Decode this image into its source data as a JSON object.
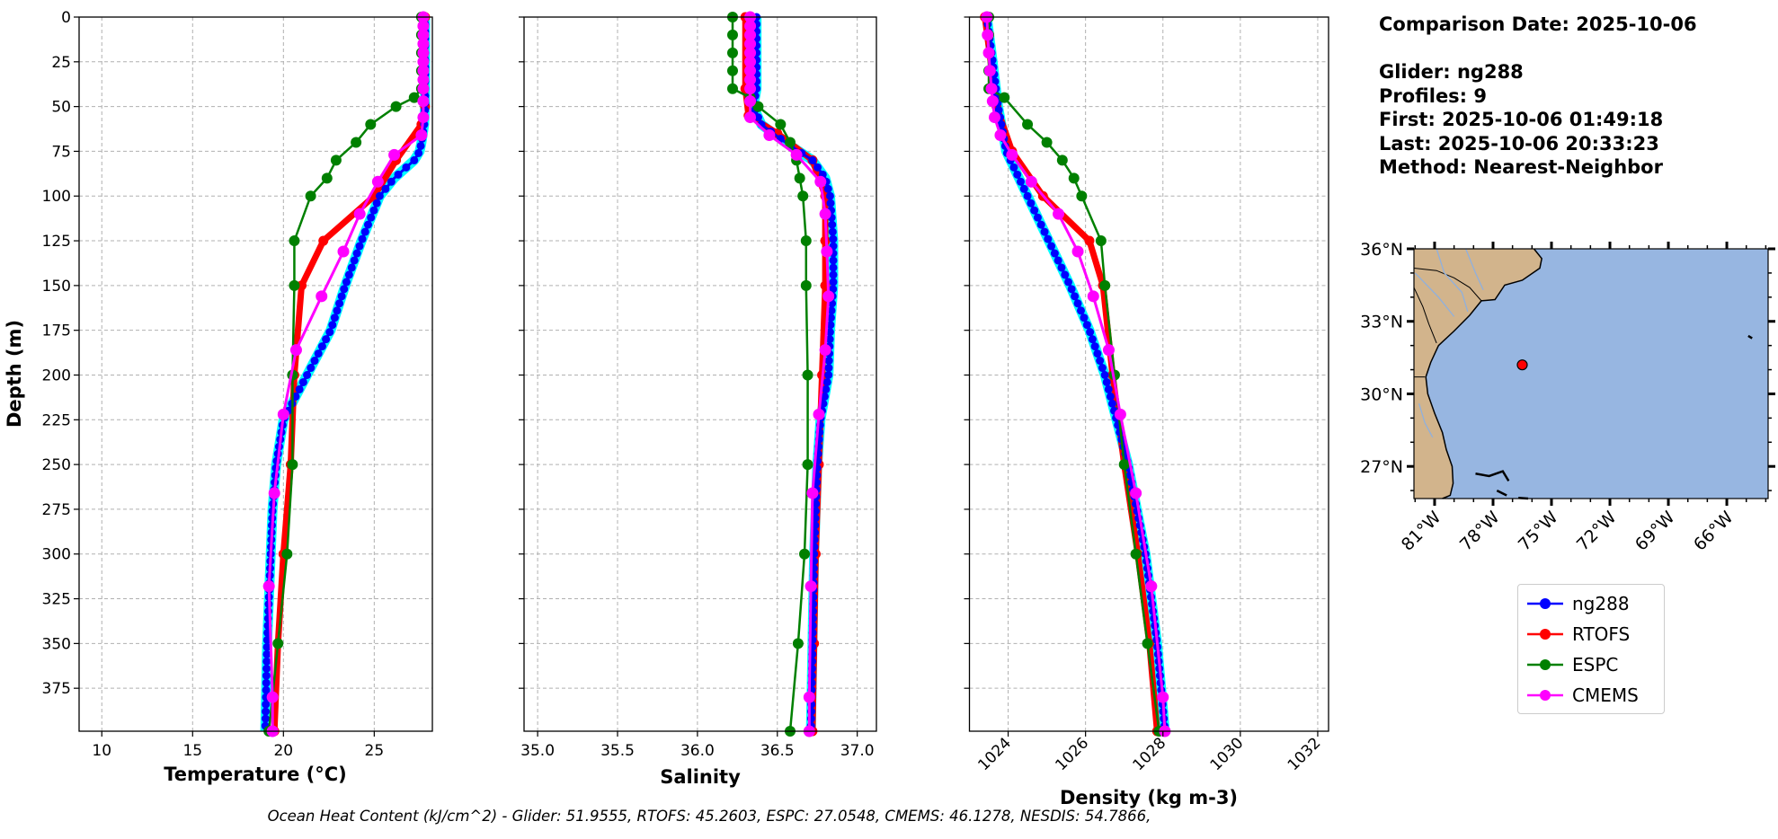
{
  "chart_data": [
    {
      "type": "line",
      "xlabel": "Temperature (°C)",
      "ylabel": "Depth (m)",
      "xlim": [
        8.75,
        28.2
      ],
      "ylim": [
        399,
        0
      ],
      "xticks": [
        10,
        15,
        20,
        25
      ],
      "yticks": [
        0,
        25,
        50,
        75,
        100,
        125,
        150,
        175,
        200,
        225,
        250,
        275,
        300,
        325,
        350,
        375
      ],
      "grid": true,
      "series": [
        {
          "name": "ng288",
          "depth": [
            0,
            20,
            40,
            50,
            60,
            70,
            75,
            80,
            90,
            100,
            110,
            125,
            150,
            175,
            200,
            225,
            250,
            275,
            300,
            350,
            399
          ],
          "values": [
            27.8,
            27.8,
            27.8,
            27.8,
            27.75,
            27.6,
            27.5,
            27.2,
            26.1,
            25.3,
            24.9,
            24.3,
            23.4,
            22.6,
            21.3,
            20.0,
            19.6,
            19.4,
            19.3,
            19.1,
            19.0
          ]
        },
        {
          "name": "RTOFS",
          "depth": [
            0,
            50,
            60,
            80,
            100,
            125,
            150,
            200,
            250,
            300,
            350,
            399
          ],
          "values": [
            27.8,
            27.8,
            27.6,
            26.2,
            25.0,
            22.2,
            21.0,
            20.6,
            20.4,
            20.0,
            19.7,
            19.5
          ]
        },
        {
          "name": "ESPC",
          "depth": [
            0,
            10,
            20,
            30,
            40,
            45,
            50,
            60,
            70,
            80,
            90,
            100,
            125,
            150,
            200,
            250,
            300,
            350,
            399
          ],
          "values": [
            27.6,
            27.6,
            27.6,
            27.6,
            27.6,
            27.2,
            26.2,
            24.8,
            24.0,
            22.9,
            22.4,
            21.5,
            20.6,
            20.6,
            20.5,
            20.5,
            20.2,
            19.7,
            19.2
          ]
        },
        {
          "name": "CMEMS",
          "depth": [
            0,
            5,
            10,
            15,
            20,
            25,
            30,
            35,
            40,
            47,
            56,
            66,
            77,
            92,
            110,
            131,
            156,
            186,
            222,
            266,
            318,
            380,
            399
          ],
          "values": [
            27.7,
            27.7,
            27.7,
            27.7,
            27.7,
            27.7,
            27.7,
            27.7,
            27.7,
            27.7,
            27.7,
            27.6,
            26.1,
            25.2,
            24.2,
            23.3,
            22.1,
            20.7,
            20.0,
            19.5,
            19.2,
            19.4,
            19.4
          ]
        }
      ]
    },
    {
      "type": "line",
      "xlabel": "Salinity",
      "xlim": [
        34.915,
        37.12
      ],
      "ylim": [
        399,
        0
      ],
      "xticks": [
        35.0,
        35.5,
        36.0,
        36.5,
        37.0
      ],
      "grid": true,
      "series": [
        {
          "name": "ng288",
          "depth": [
            0,
            20,
            40,
            50,
            60,
            70,
            80,
            90,
            100,
            125,
            150,
            175,
            200,
            225,
            250,
            300,
            350,
            399
          ],
          "values": [
            36.37,
            36.37,
            36.37,
            36.35,
            36.4,
            36.55,
            36.72,
            36.8,
            36.83,
            36.85,
            36.85,
            36.83,
            36.82,
            36.77,
            36.75,
            36.73,
            36.72,
            36.71
          ]
        },
        {
          "name": "RTOFS",
          "depth": [
            0,
            40,
            55,
            65,
            80,
            100,
            125,
            150,
            200,
            250,
            300,
            350,
            399
          ],
          "values": [
            36.3,
            36.3,
            36.32,
            36.5,
            36.72,
            36.8,
            36.8,
            36.8,
            36.78,
            36.76,
            36.74,
            36.73,
            36.72
          ]
        },
        {
          "name": "ESPC",
          "depth": [
            0,
            10,
            20,
            30,
            40,
            45,
            50,
            60,
            70,
            80,
            90,
            100,
            125,
            150,
            200,
            250,
            300,
            350,
            399
          ],
          "values": [
            36.22,
            36.22,
            36.22,
            36.22,
            36.22,
            36.33,
            36.38,
            36.52,
            36.58,
            36.62,
            36.64,
            36.66,
            36.68,
            36.68,
            36.69,
            36.69,
            36.67,
            36.63,
            36.58
          ]
        },
        {
          "name": "CMEMS",
          "depth": [
            0,
            5,
            10,
            15,
            20,
            25,
            30,
            35,
            40,
            47,
            56,
            66,
            77,
            92,
            110,
            131,
            156,
            186,
            222,
            266,
            318,
            380,
            399
          ],
          "values": [
            36.33,
            36.33,
            36.33,
            36.33,
            36.33,
            36.33,
            36.33,
            36.33,
            36.33,
            36.33,
            36.33,
            36.45,
            36.62,
            36.77,
            36.8,
            36.81,
            36.82,
            36.8,
            36.76,
            36.72,
            36.71,
            36.7,
            36.7
          ]
        }
      ]
    },
    {
      "type": "line",
      "xlabel": "Density (kg m-3)",
      "xlim": [
        1023.0,
        1032.28
      ],
      "ylim": [
        399,
        0
      ],
      "xticks": [
        1024,
        1026,
        1028,
        1030,
        1032
      ],
      "grid": true,
      "series": [
        {
          "name": "ng288",
          "depth": [
            0,
            25,
            50,
            75,
            100,
            125,
            150,
            175,
            200,
            225,
            250,
            300,
            350,
            399
          ],
          "values": [
            1023.45,
            1023.6,
            1023.74,
            1023.95,
            1024.5,
            1025.05,
            1025.6,
            1026.1,
            1026.5,
            1026.8,
            1027.1,
            1027.55,
            1027.85,
            1028.05
          ]
        },
        {
          "name": "RTOFS",
          "depth": [
            0,
            50,
            75,
            100,
            125,
            150,
            200,
            250,
            300,
            350,
            399
          ],
          "values": [
            1023.4,
            1023.7,
            1024.1,
            1024.9,
            1026.1,
            1026.45,
            1026.7,
            1027.0,
            1027.35,
            1027.65,
            1027.85
          ]
        },
        {
          "name": "ESPC",
          "depth": [
            0,
            10,
            20,
            30,
            40,
            45,
            60,
            70,
            80,
            90,
            100,
            125,
            150,
            200,
            250,
            300,
            350,
            399
          ],
          "values": [
            1023.5,
            1023.5,
            1023.5,
            1023.5,
            1023.5,
            1023.9,
            1024.5,
            1025.0,
            1025.4,
            1025.7,
            1025.9,
            1026.4,
            1026.5,
            1026.75,
            1027.0,
            1027.3,
            1027.6,
            1027.9
          ]
        },
        {
          "name": "CMEMS",
          "depth": [
            0,
            10,
            20,
            30,
            40,
            47,
            56,
            66,
            77,
            92,
            110,
            131,
            156,
            186,
            222,
            266,
            318,
            380,
            399
          ],
          "values": [
            1023.45,
            1023.47,
            1023.5,
            1023.53,
            1023.57,
            1023.6,
            1023.65,
            1023.8,
            1024.1,
            1024.6,
            1025.3,
            1025.8,
            1026.2,
            1026.6,
            1026.9,
            1027.3,
            1027.7,
            1028.0,
            1028.05
          ]
        }
      ]
    },
    {
      "type": "map",
      "lon_range": [
        -82.06,
        -63.88
      ],
      "lat_range": [
        25.67,
        36.0
      ],
      "lon_ticks": [
        -81,
        -78,
        -75,
        -72,
        -69,
        -66
      ],
      "lon_labels": [
        "81°W",
        "78°W",
        "75°W",
        "72°W",
        "69°W",
        "66°W"
      ],
      "lat_ticks": [
        27,
        30,
        33,
        36
      ],
      "lat_labels": [
        "27°N",
        "30°N",
        "33°N",
        "36°N"
      ],
      "glider_position": {
        "lon": -76.5,
        "lat": 31.2
      }
    }
  ],
  "colors": {
    "ng288": "#0000ff",
    "profiles": "#00ffff",
    "RTOFS": "#ff0000",
    "ESPC": "#008000",
    "CMEMS": "#ff00ff",
    "land": "#d2b48c",
    "ocean": "#97b6e1",
    "grid": "#b0b0b0"
  },
  "labels": {
    "ylabel": "Depth (m)",
    "temperature_prefix": "Temperature (",
    "temperature_unit_sup": "o",
    "temperature_unit": "C",
    "temperature_suffix": ")",
    "salinity": "Salinity",
    "density": "Density (kg m-3)"
  },
  "info": {
    "comparison_date": "Comparison Date: 2025-10-06",
    "glider": "Glider: ng288",
    "profiles": "Profiles: 9",
    "first": "First: 2025-10-06 01:49:18",
    "last": "Last: 2025-10-06 20:33:23",
    "method": "Method: Nearest-Neighbor"
  },
  "legend": [
    "ng288",
    "RTOFS",
    "ESPC",
    "CMEMS"
  ],
  "footer": "Ocean Heat Content (kJ/cm^2) - Glider: 51.9555,  RTOFS: 45.2603,  ESPC: 27.0548,  CMEMS: 46.1278,  NESDIS: 54.7866,"
}
